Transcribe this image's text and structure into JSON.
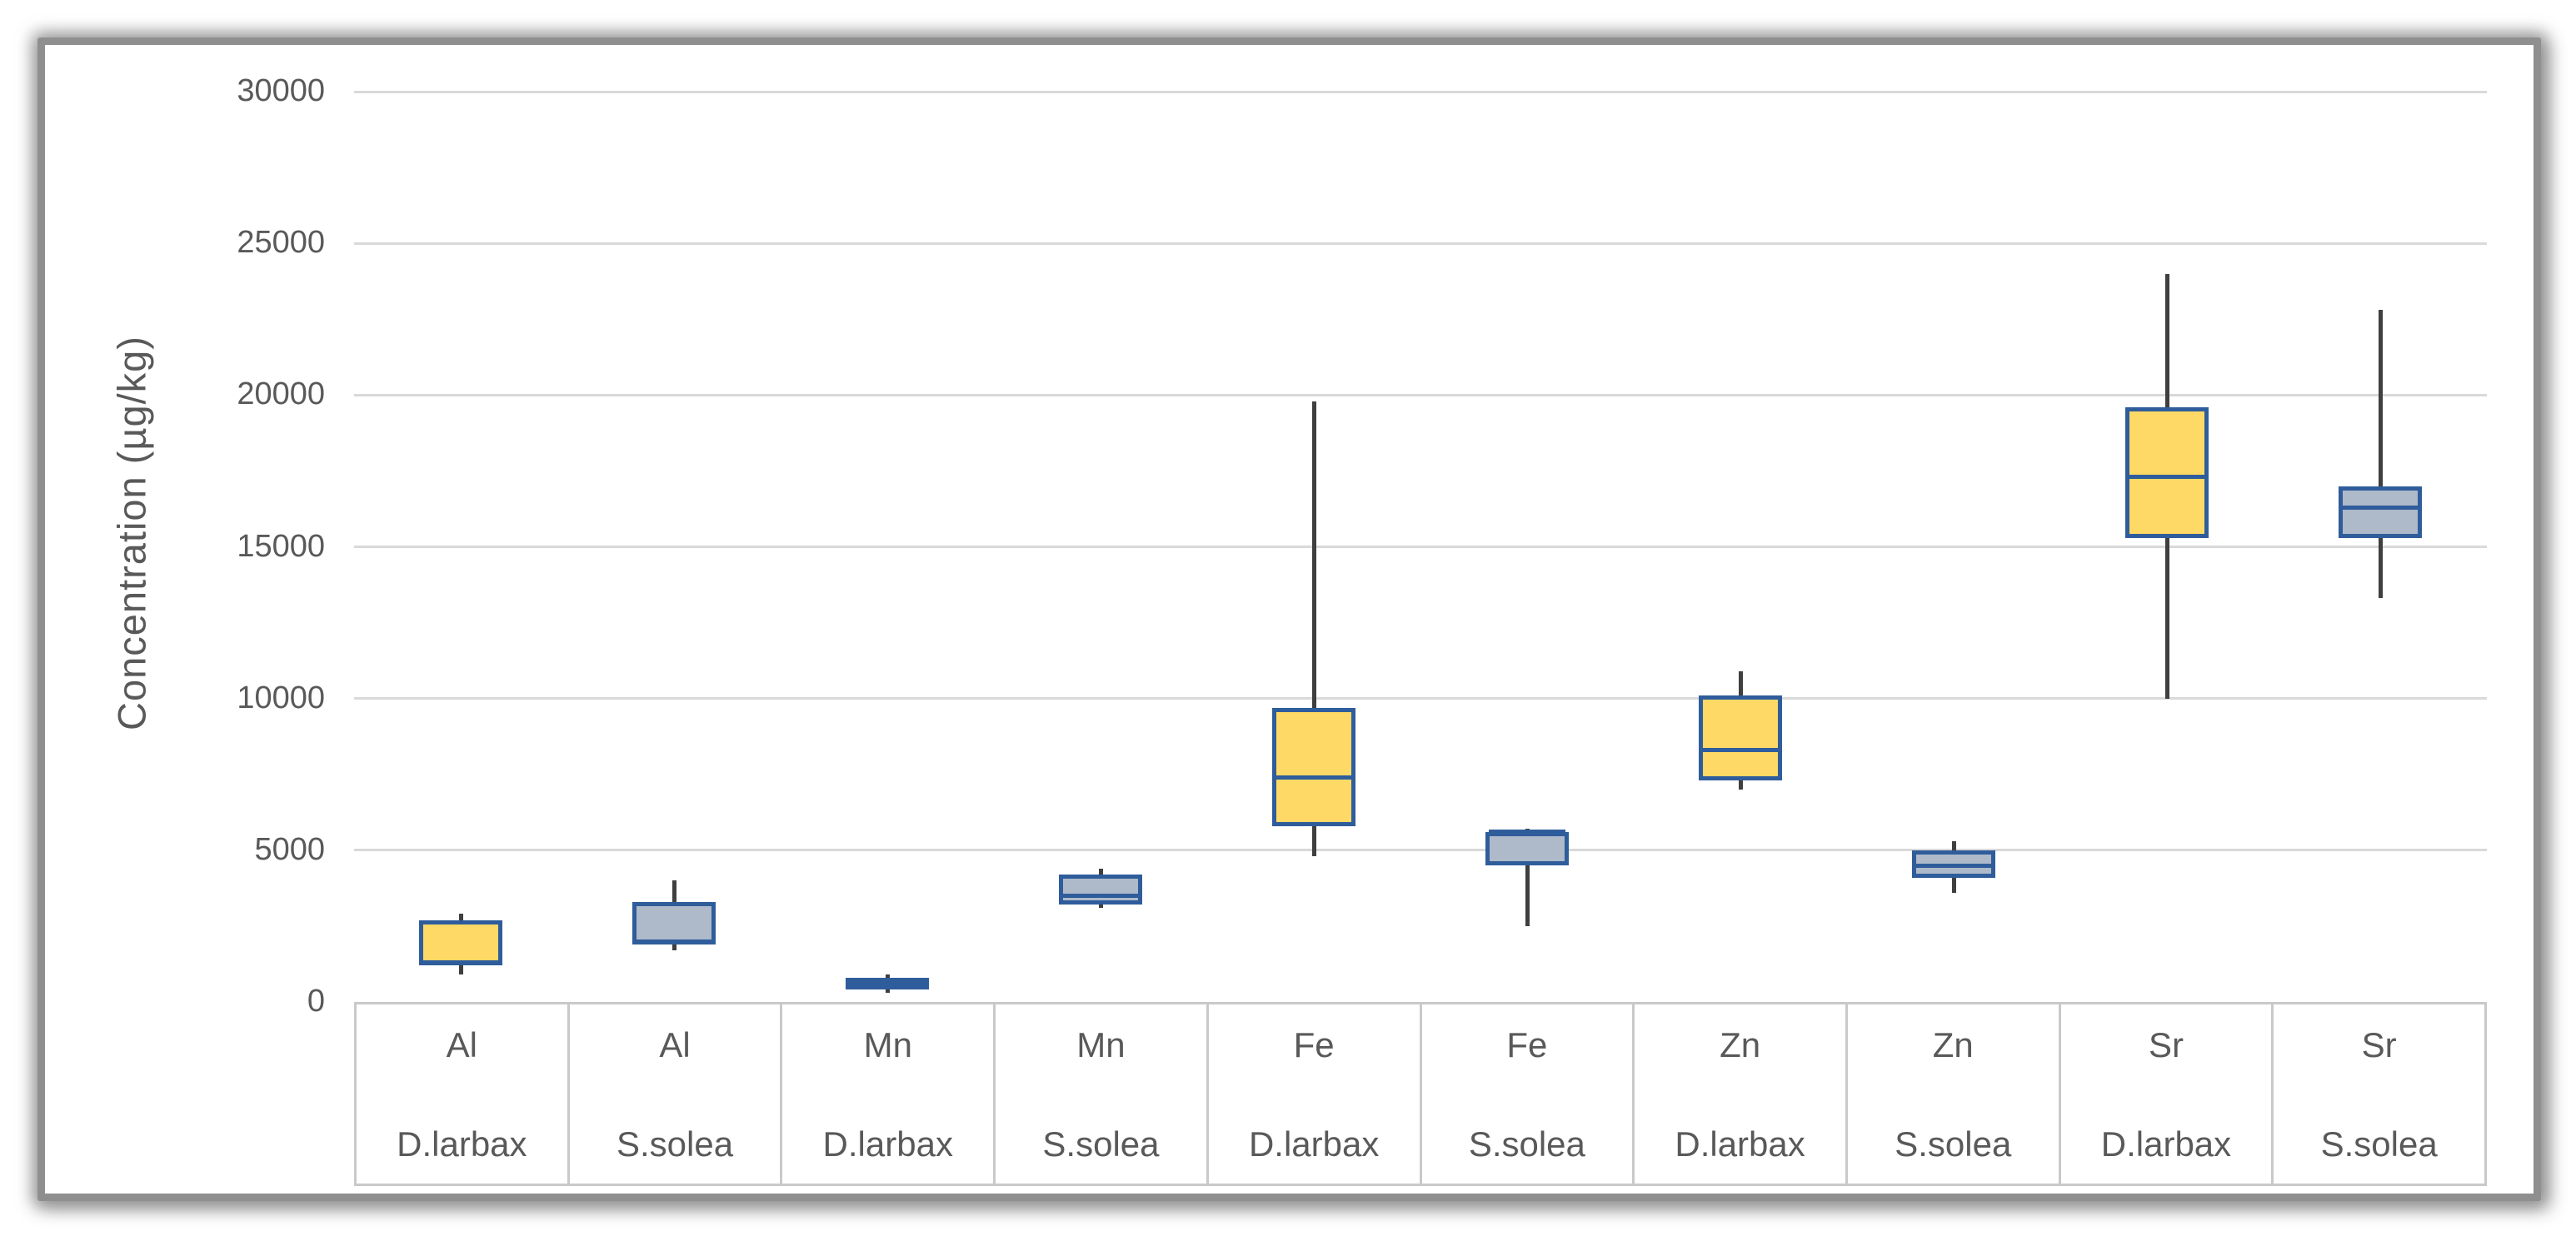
{
  "chart_data": {
    "type": "boxplot",
    "title": "",
    "xlabel": "",
    "ylabel": "Concentration (µg/kg)",
    "ylim": [
      0,
      30000
    ],
    "yticks": [
      0,
      5000,
      10000,
      15000,
      20000,
      25000,
      30000
    ],
    "grid": true,
    "legend": "none",
    "categories": [
      {
        "metal": "Al",
        "species": "D.larbax"
      },
      {
        "metal": "Al",
        "species": "S.solea"
      },
      {
        "metal": "Mn",
        "species": "D.larbax"
      },
      {
        "metal": "Mn",
        "species": "S.solea"
      },
      {
        "metal": "Fe",
        "species": "D.larbax"
      },
      {
        "metal": "Fe",
        "species": "S.solea"
      },
      {
        "metal": "Zn",
        "species": "D.larbax"
      },
      {
        "metal": "Zn",
        "species": "S.solea"
      },
      {
        "metal": "Sr",
        "species": "D.larbax"
      },
      {
        "metal": "Sr",
        "species": "S.solea"
      }
    ],
    "series": [
      {
        "metal": "Al",
        "species": "D.larbax",
        "min": 900,
        "q1": 1200,
        "median": 1300,
        "q3": 2700,
        "max": 2900
      },
      {
        "metal": "Al",
        "species": "S.solea",
        "min": 1700,
        "q1": 1900,
        "median": 2000,
        "q3": 3300,
        "max": 4000
      },
      {
        "metal": "Mn",
        "species": "D.larbax",
        "min": 300,
        "q1": 400,
        "median": 600,
        "q3": 800,
        "max": 900
      },
      {
        "metal": "Mn",
        "species": "S.solea",
        "min": 3100,
        "q1": 3200,
        "median": 3500,
        "q3": 4200,
        "max": 4400
      },
      {
        "metal": "Fe",
        "species": "D.larbax",
        "min": 4800,
        "q1": 5800,
        "median": 7400,
        "q3": 9700,
        "max": 19800
      },
      {
        "metal": "Fe",
        "species": "S.solea",
        "min": 2500,
        "q1": 4500,
        "median": 5600,
        "q3": 5600,
        "max": 5700
      },
      {
        "metal": "Zn",
        "species": "D.larbax",
        "min": 7000,
        "q1": 7300,
        "median": 8300,
        "q3": 10100,
        "max": 10900
      },
      {
        "metal": "Zn",
        "species": "S.solea",
        "min": 3600,
        "q1": 4100,
        "median": 4500,
        "q3": 5000,
        "max": 5300
      },
      {
        "metal": "Sr",
        "species": "D.larbax",
        "min": 10000,
        "q1": 15300,
        "median": 17300,
        "q3": 19600,
        "max": 24000
      },
      {
        "metal": "Sr",
        "species": "S.solea",
        "min": 13300,
        "q1": 15300,
        "median": 16300,
        "q3": 17000,
        "max": 22800
      }
    ],
    "colors": {
      "fill_D.larbax": "#FFD966",
      "fill_S.solea": "#AEB9CA",
      "box_border": "#2F5D9B",
      "whisker": "#3F3F3F",
      "gridline": "#D9D9D9",
      "axis_text": "#595959",
      "frame": "#8F8F8F",
      "background": "#FFFFFF"
    }
  }
}
